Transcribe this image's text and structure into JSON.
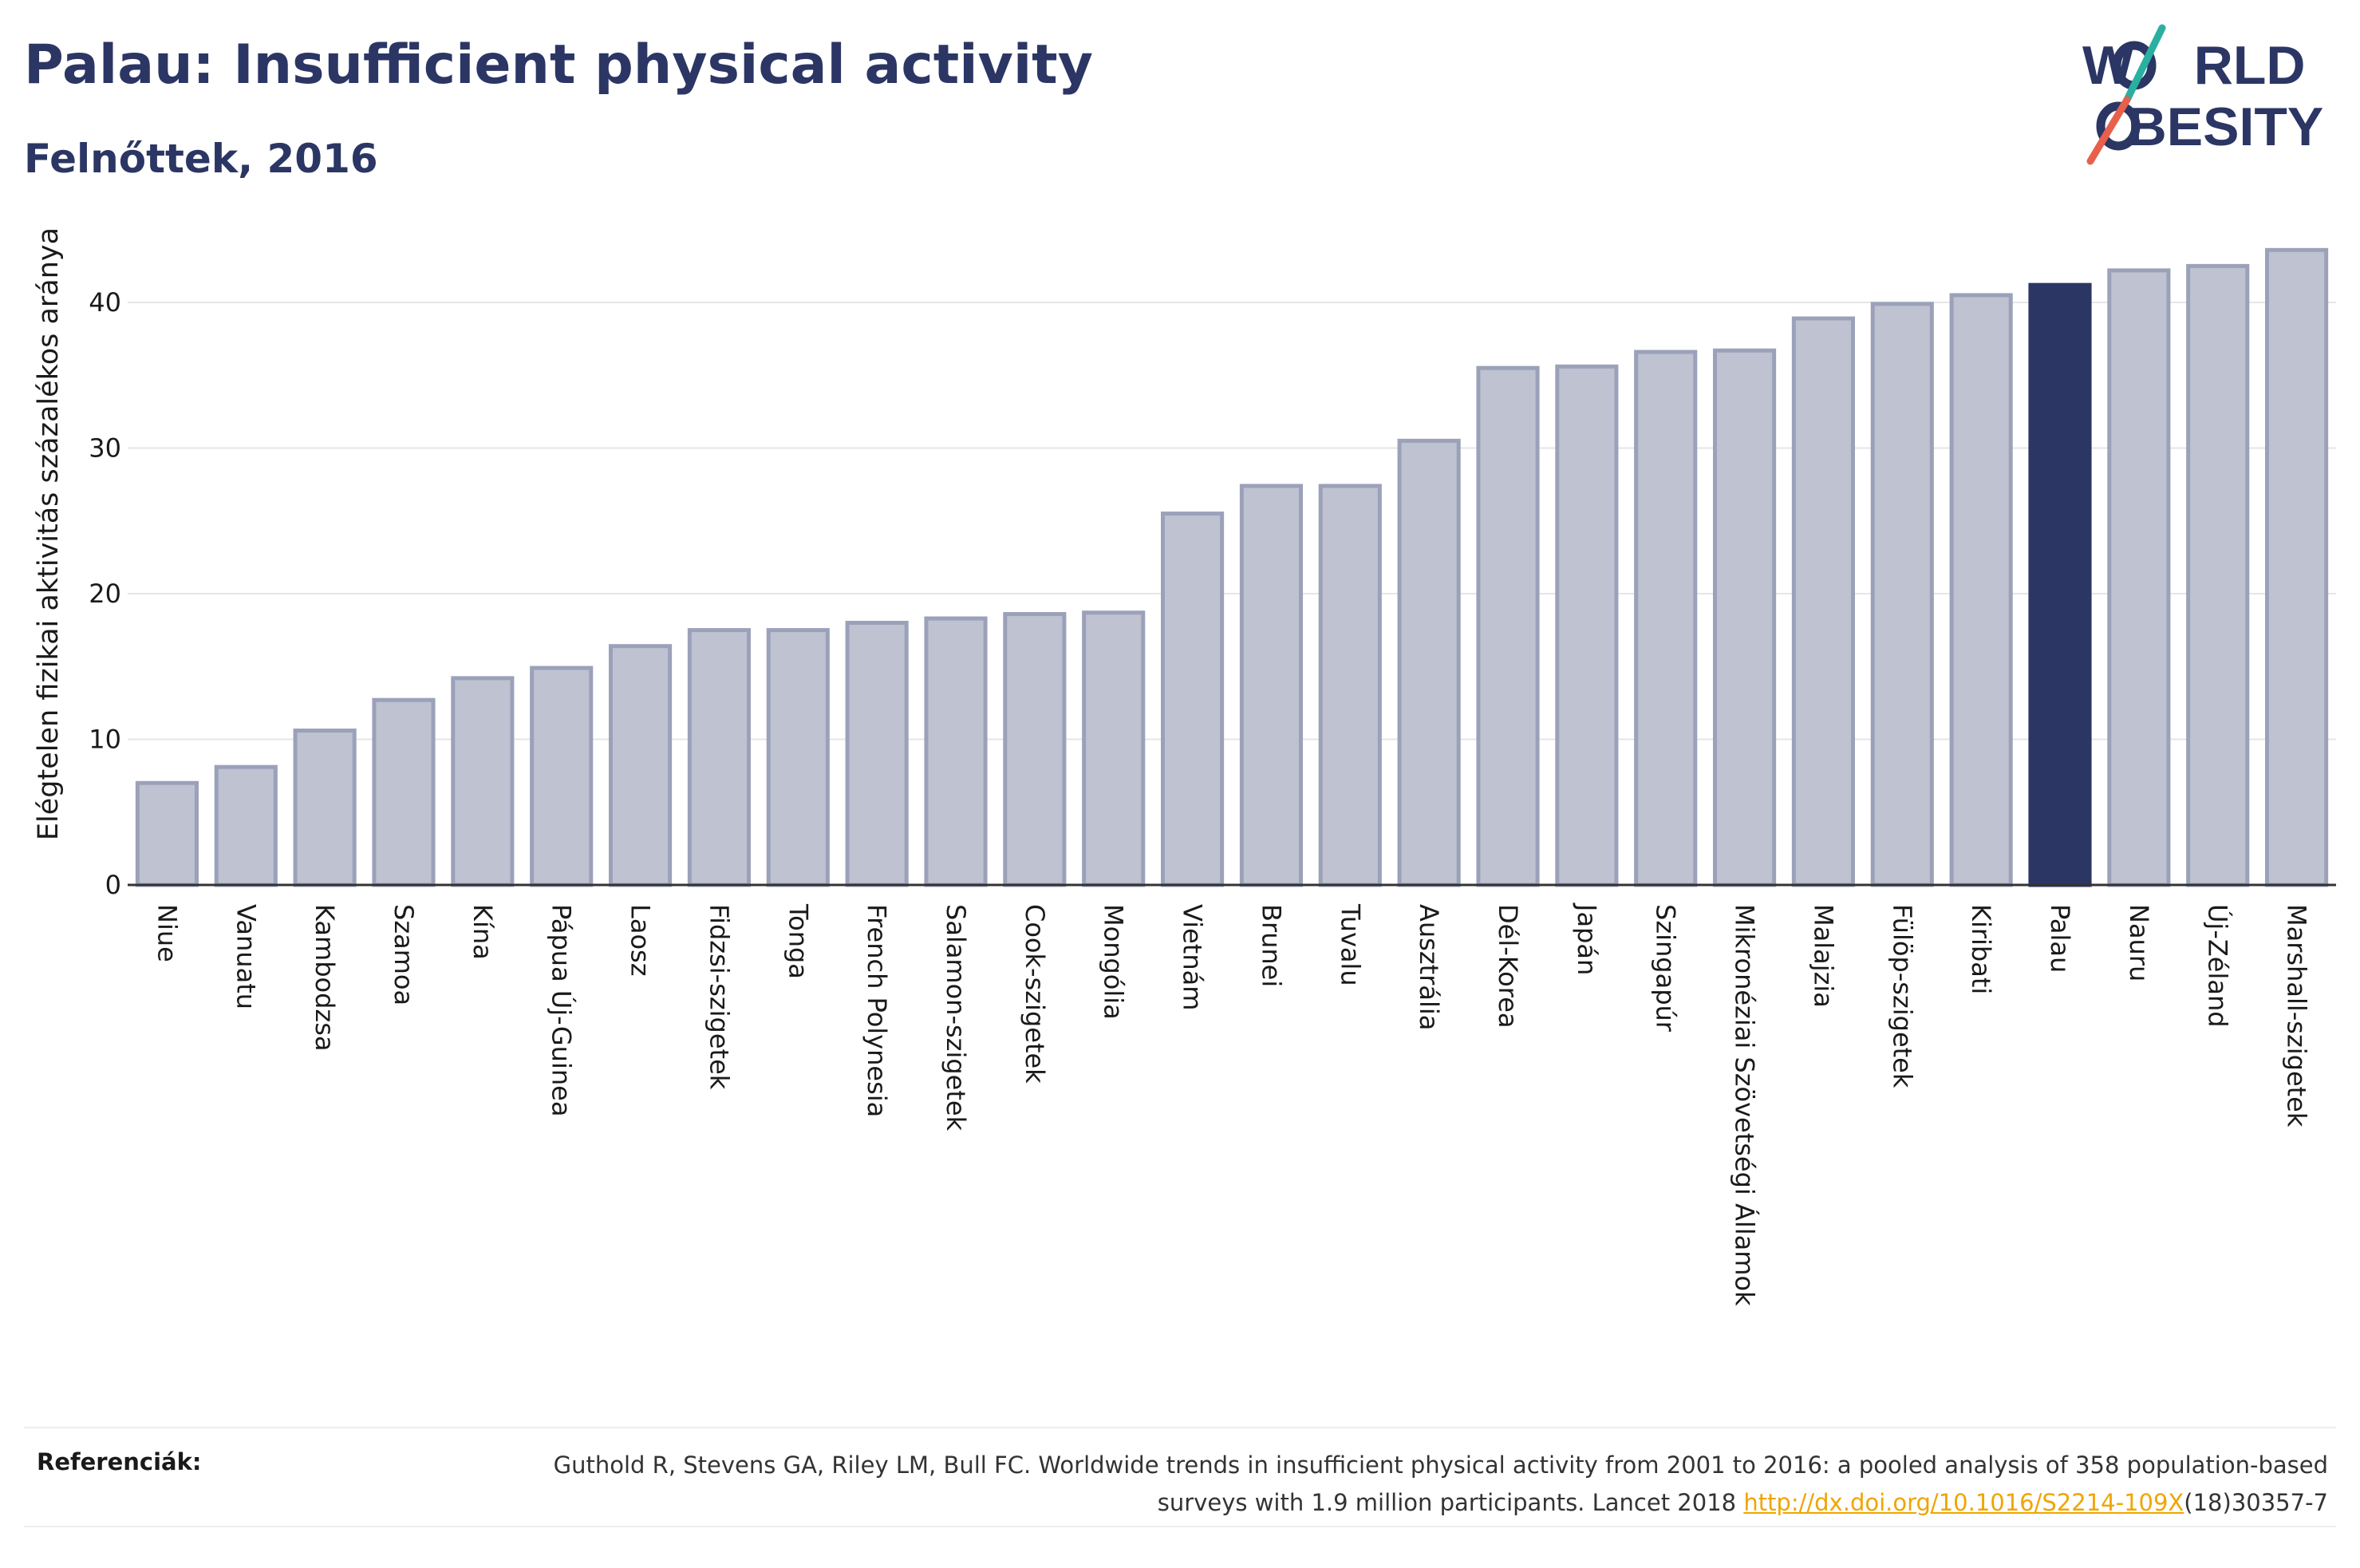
{
  "header": {
    "title": "Palau: Insufficient physical activity",
    "subtitle": "Felnőttek, 2016"
  },
  "logo": {
    "line1": "W RLD",
    "line2": "BESITY",
    "colors": {
      "text": "#2b3664",
      "slash_top": "#2ab0a0",
      "slash_bottom": "#e8604c"
    }
  },
  "chart_data": {
    "type": "bar",
    "ylabel": "Elégtelen fizikai aktivitás százalékos aránya",
    "xlabel": "",
    "ylim": [
      0,
      45
    ],
    "yticks": [
      0,
      10,
      20,
      30,
      40
    ],
    "grid": true,
    "highlight": "Palau",
    "colors": {
      "bar": "#bec2d1",
      "bar_edge": "#9ba1b9",
      "highlight": "#2b3664",
      "axis": "#333333",
      "grid": "#e6e6e6"
    },
    "categories": [
      "Niue",
      "Vanuatu",
      "Kambodzsa",
      "Szamoa",
      "Kína",
      "Pápua Új-Guinea",
      "Laosz",
      "Fidzsi-szigetek",
      "Tonga",
      "French Polynesia",
      "Salamon-szigetek",
      "Cook-szigetek",
      "Mongólia",
      "Vietnám",
      "Brunei",
      "Tuvalu",
      "Ausztrália",
      "Dél-Korea",
      "Japán",
      "Szingapúr",
      "Mikronéziai Szövetségi Államok",
      "Malajzia",
      "Fülöp-szigetek",
      "Kiribati",
      "Palau",
      "Nauru",
      "Új-Zéland",
      "Marshall-szigetek"
    ],
    "values": [
      7.0,
      8.1,
      10.6,
      12.7,
      14.2,
      14.9,
      16.4,
      17.5,
      17.5,
      18.0,
      18.3,
      18.6,
      18.7,
      25.5,
      27.4,
      27.4,
      30.5,
      35.5,
      35.6,
      36.6,
      36.7,
      38.9,
      39.9,
      40.5,
      41.2,
      42.2,
      42.5,
      43.6
    ]
  },
  "footer": {
    "ref_label": "Referenciák:",
    "ref_text": "Guthold R, Stevens GA, Riley LM, Bull FC. Worldwide trends in insufficient physical activity from 2001 to 2016: a pooled analysis of 358 population-based surveys with 1.9 million participants. Lancet 2018 ",
    "ref_link": "http://dx.doi.org/10.1016/S2214-109X",
    "ref_suffix": "(18)30357-7"
  }
}
